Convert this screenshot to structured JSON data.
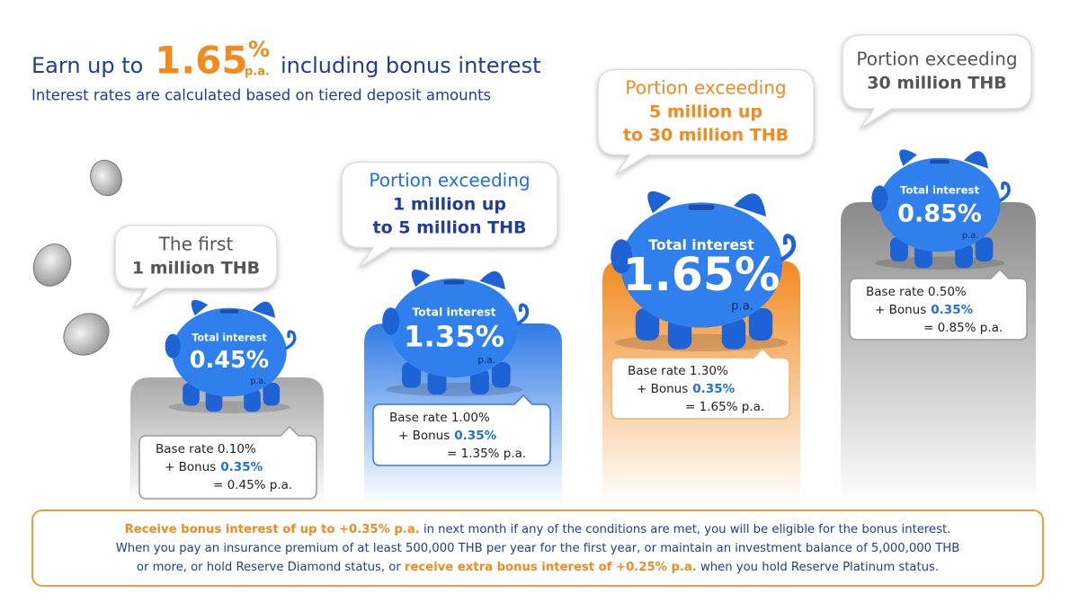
{
  "header": {
    "title": {
      "lead": "Earn up to",
      "rate": "1.65",
      "percent": "%",
      "unit": "p.a.",
      "tail": "including bonus interest"
    },
    "subtitle": "Interest rates are calculated based on tiered deposit amounts"
  },
  "tiers": [
    {
      "bubble": [
        "The first",
        "1 million THB"
      ],
      "pig": {
        "label": "Total interest",
        "rate": "0.45%",
        "unit": "p.a."
      },
      "breakdown": {
        "base": "Base rate 0.10%",
        "bonus_label": "+ Bonus",
        "bonus_rate": "0.35%",
        "total": "= 0.45% p.a."
      }
    },
    {
      "bubble": [
        "Portion exceeding",
        "1 million up",
        "to 5 million THB"
      ],
      "pig": {
        "label": "Total interest",
        "rate": "1.35%",
        "unit": "p.a."
      },
      "breakdown": {
        "base": "Base rate 1.00%",
        "bonus_label": "+ Bonus",
        "bonus_rate": "0.35%",
        "total": "= 1.35% p.a."
      }
    },
    {
      "bubble": [
        "Portion exceeding",
        "5 million up",
        "to 30 million THB"
      ],
      "pig": {
        "label": "Total interest",
        "rate": "1.65%",
        "unit": "p.a."
      },
      "breakdown": {
        "base": "Base rate 1.30%",
        "bonus_label": "+ Bonus",
        "bonus_rate": "0.35%",
        "total": "= 1.65% p.a."
      }
    },
    {
      "bubble": [
        "Portion exceeding",
        "30 million THB"
      ],
      "pig": {
        "label": "Total interest",
        "rate": "0.85%",
        "unit": "p.a."
      },
      "breakdown": {
        "base": "Base rate 0.50%",
        "bonus_label": "+ Bonus",
        "bonus_rate": "0.35%",
        "total": "= 0.85% p.a."
      }
    }
  ],
  "footer": {
    "lines": [
      [
        {
          "text": "Receive bonus interest of up to +0.35% p.a.",
          "highlight": true
        },
        {
          "text": " in next month if any of the conditions are met, you will be eligible for the bonus interest.",
          "highlight": false
        }
      ],
      [
        {
          "text": "When you pay an insurance premium of at least 500,000 THB per year for the first year, or maintain an investment balance of 5,000,000 THB",
          "highlight": false
        }
      ],
      [
        {
          "text": "or more, or hold Reserve Diamond status, or ",
          "highlight": false
        },
        {
          "text": "receive extra bonus interest of +0.25% p.a.",
          "highlight": true
        },
        {
          "text": " when you hold Reserve Platinum status.",
          "highlight": false
        }
      ]
    ]
  }
}
